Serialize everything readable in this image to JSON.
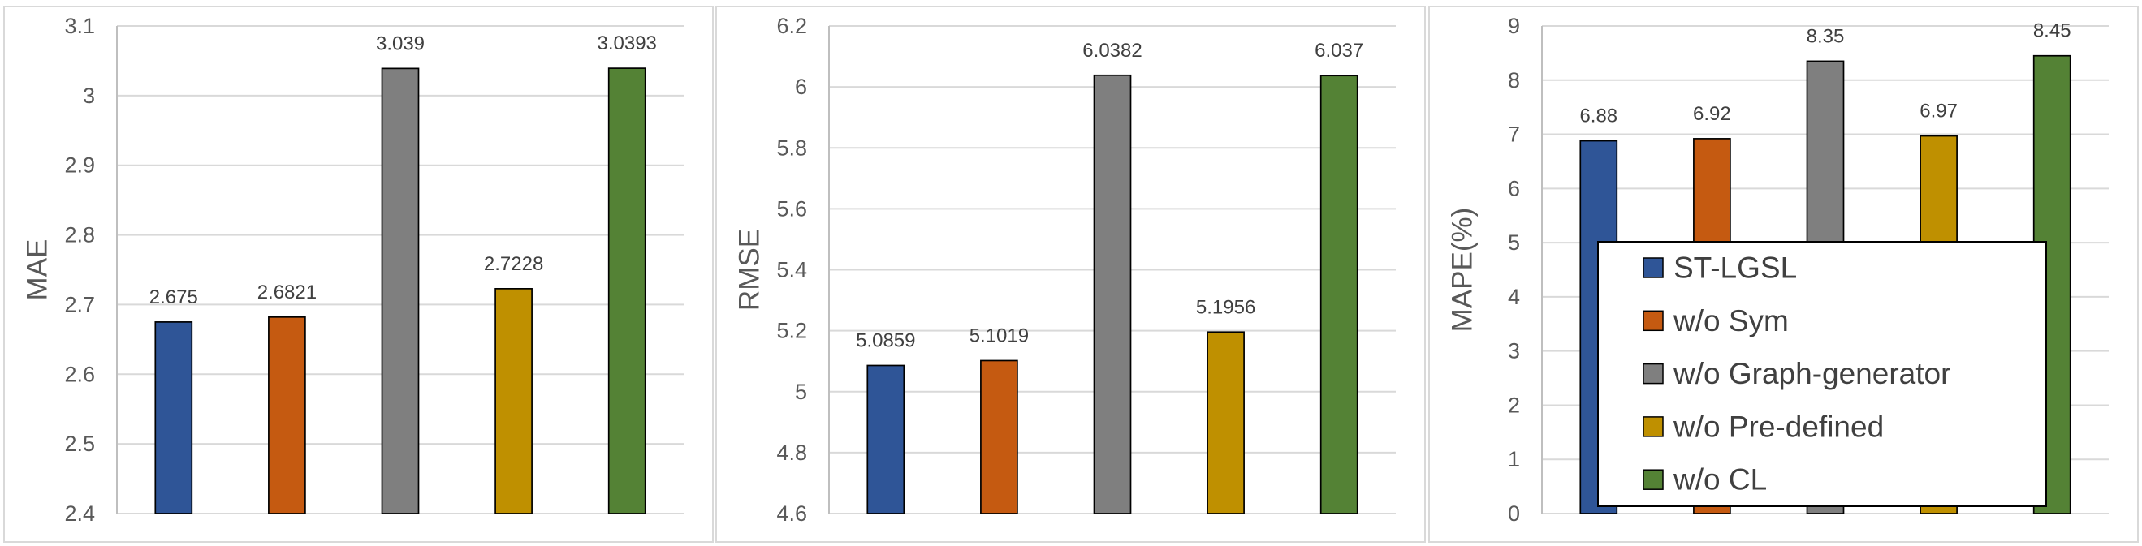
{
  "chart_data": [
    {
      "type": "bar",
      "ylabel": "MAE",
      "ylim": [
        2.4,
        3.1
      ],
      "yticks": [
        2.4,
        2.5,
        2.6,
        2.7,
        2.8,
        2.9,
        3,
        3.1
      ],
      "values": [
        2.675,
        2.6821,
        3.039,
        2.7228,
        3.0393
      ],
      "colors": [
        "#2F5597",
        "#C55A11",
        "#7F7F7F",
        "#BF9000",
        "#548235"
      ],
      "grid": true
    },
    {
      "type": "bar",
      "ylabel": "RMSE",
      "ylim": [
        4.6,
        6.2
      ],
      "yticks": [
        4.6,
        4.8,
        5,
        5.2,
        5.4,
        5.6,
        5.8,
        6,
        6.2
      ],
      "values": [
        5.0859,
        5.1019,
        6.0382,
        5.1956,
        6.037
      ],
      "colors": [
        "#2F5597",
        "#C55A11",
        "#7F7F7F",
        "#BF9000",
        "#548235"
      ],
      "grid": true
    },
    {
      "type": "bar",
      "ylabel": "MAPE(%)",
      "ylim": [
        0,
        9
      ],
      "yticks": [
        0,
        1,
        2,
        3,
        4,
        5,
        6,
        7,
        8,
        9
      ],
      "values": [
        6.88,
        6.92,
        8.35,
        6.97,
        8.45
      ],
      "colors": [
        "#2F5597",
        "#C55A11",
        "#7F7F7F",
        "#BF9000",
        "#548235"
      ],
      "grid": true,
      "legend": {
        "position": "inside-bottom",
        "entries": [
          "ST-LGSL",
          "w/o Sym",
          "w/o Graph-generator",
          "w/o Pre-defined",
          "w/o CL"
        ]
      }
    }
  ]
}
